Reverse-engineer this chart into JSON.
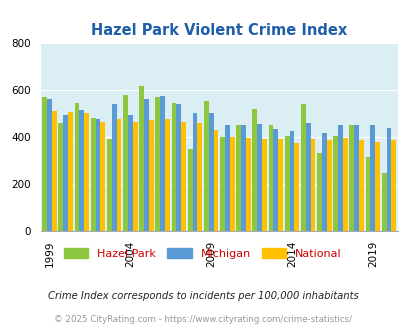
{
  "title": "Hazel Park Violent Crime Index",
  "years": [
    1999,
    2000,
    2001,
    2002,
    2003,
    2004,
    2005,
    2006,
    2007,
    2008,
    2009,
    2010,
    2011,
    2012,
    2013,
    2014,
    2015,
    2016,
    2017,
    2018,
    2019,
    2020
  ],
  "hazel_park": [
    570,
    460,
    545,
    480,
    390,
    580,
    615,
    570,
    545,
    350,
    555,
    400,
    450,
    520,
    450,
    405,
    540,
    330,
    405,
    450,
    315,
    245
  ],
  "michigan": [
    560,
    495,
    515,
    475,
    540,
    495,
    560,
    575,
    540,
    500,
    500,
    450,
    450,
    455,
    435,
    425,
    460,
    415,
    450,
    450,
    450,
    440
  ],
  "national": [
    510,
    505,
    500,
    465,
    475,
    465,
    470,
    475,
    465,
    460,
    430,
    400,
    395,
    390,
    390,
    375,
    390,
    385,
    395,
    385,
    380,
    385
  ],
  "hazel_park_color": "#8dc63f",
  "michigan_color": "#5b9bd5",
  "national_color": "#ffc000",
  "bg_color": "#daeef3",
  "ylim": [
    0,
    800
  ],
  "yticks": [
    0,
    200,
    400,
    600,
    800
  ],
  "xlabel_ticks": [
    1999,
    2004,
    2009,
    2014,
    2019
  ],
  "legend_labels": [
    "Hazel Park",
    "Michigan",
    "National"
  ],
  "footnote1": "Crime Index corresponds to incidents per 100,000 inhabitants",
  "footnote2": "© 2025 CityRating.com - https://www.cityrating.com/crime-statistics/",
  "title_color": "#1f5faa",
  "footnote1_color": "#222222",
  "footnote2_color": "#999999",
  "legend_label_color": "#cc0000"
}
